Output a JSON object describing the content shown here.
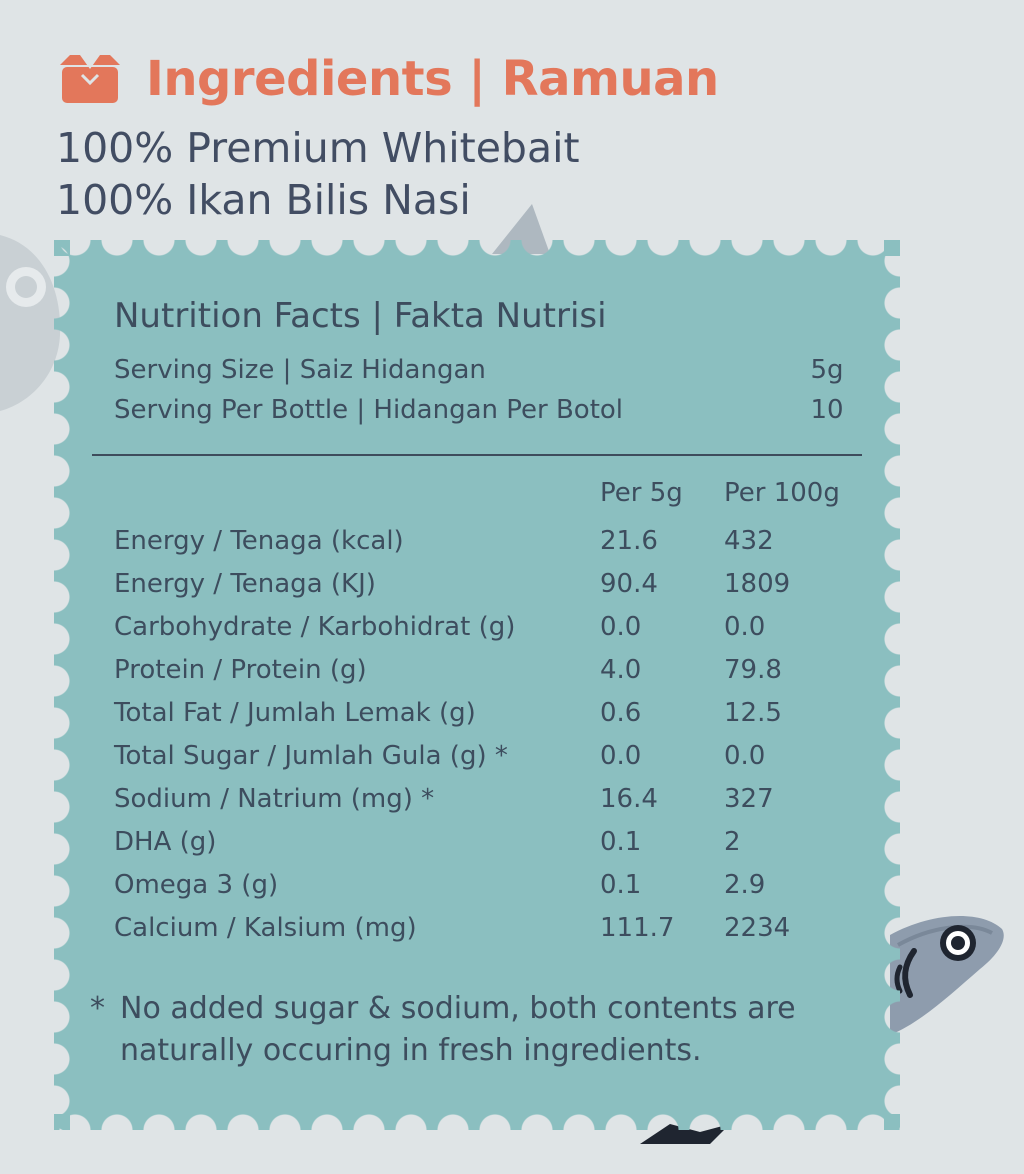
{
  "header": {
    "title": "Ingredients | Ramuan",
    "line1": "100% Premium Whitebait",
    "line2": "100% Ikan Bilis Nasi"
  },
  "colors": {
    "background": "#dfe4e6",
    "accent": "#e3775b",
    "card": "#8bbfc0",
    "text": "#3d4d5e"
  },
  "icons": [
    "box-icon",
    "fish-illustration"
  ],
  "nutrition": {
    "title": "Nutrition Facts | Fakta Nutrisi",
    "serving_size_label": "Serving Size | Saiz Hidangan",
    "serving_size_value": "5g",
    "servings_label": "Serving Per Bottle | Hidangan Per Botol",
    "servings_value": "10",
    "col_a": "Per 5g",
    "col_b": "Per 100g",
    "rows": [
      {
        "name": "Energy / Tenaga (kcal)",
        "a": "21.6",
        "b": "432"
      },
      {
        "name": "Energy / Tenaga (KJ)",
        "a": "90.4",
        "b": "1809"
      },
      {
        "name": "Carbohydrate / Karbohidrat (g)",
        "a": "0.0",
        "b": "0.0"
      },
      {
        "name": "Protein / Protein (g)",
        "a": "4.0",
        "b": "79.8"
      },
      {
        "name": "Total Fat / Jumlah Lemak (g)",
        "a": "0.6",
        "b": "12.5"
      },
      {
        "name": "Total Sugar / Jumlah Gula (g) *",
        "a": "0.0",
        "b": "0.0"
      },
      {
        "name": "Sodium / Natrium (mg) *",
        "a": "16.4",
        "b": "327"
      },
      {
        "name": "DHA (g)",
        "a": "0.1",
        "b": "2"
      },
      {
        "name": "Omega 3 (g)",
        "a": "0.1",
        "b": "2.9"
      },
      {
        "name": "Calcium / Kalsium (mg)",
        "a": "111.7",
        "b": "2234"
      }
    ],
    "footnote_star": "*",
    "footnote": "No added sugar & sodium, both contents are naturally occuring in fresh ingredients."
  }
}
